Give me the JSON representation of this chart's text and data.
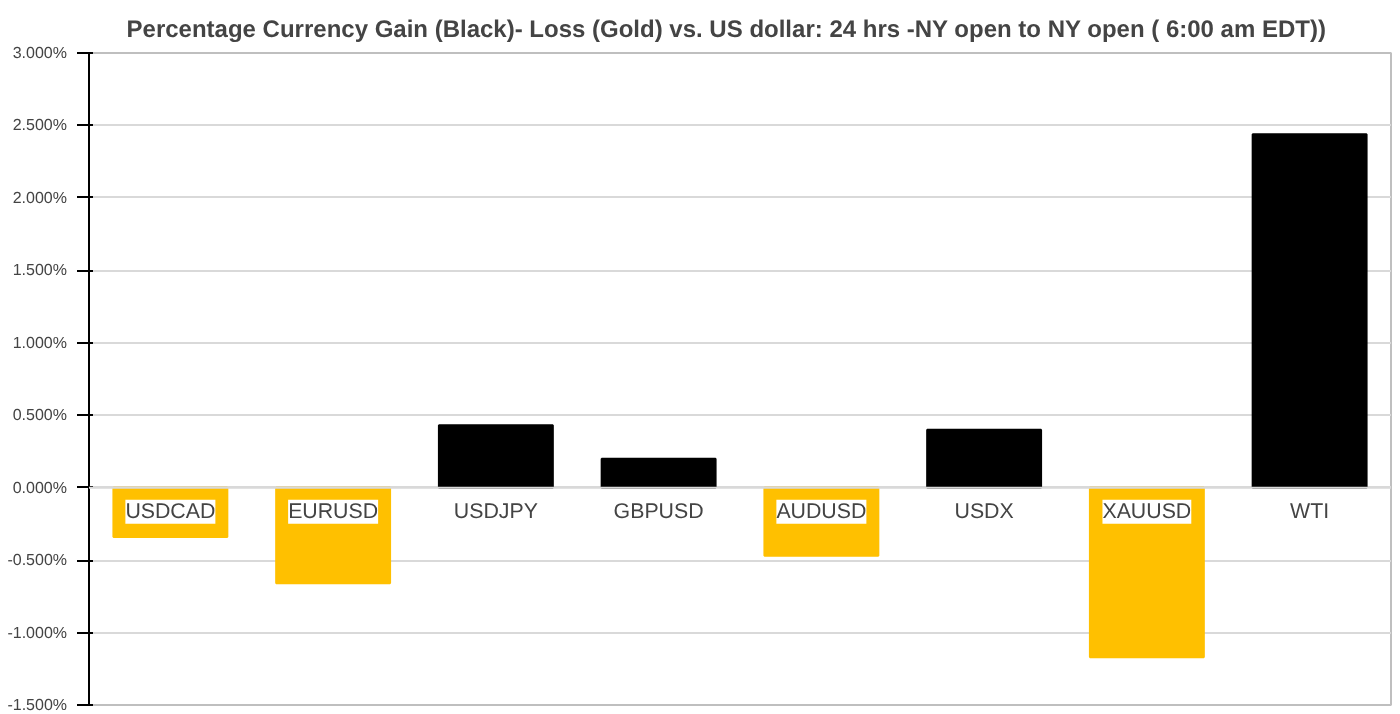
{
  "chart_data": {
    "type": "bar",
    "title": "Percentage Currency  Gain (Black)- Loss (Gold)  vs. US dollar:   24 hrs -NY open to NY open ( 6:00 am EDT))",
    "categories": [
      "USDCAD",
      "EURUSD",
      "USDJPY",
      "GBPUSD",
      "AUDUSD",
      "USDX",
      "XAUUSD",
      "WTI"
    ],
    "values": [
      -0.34,
      -0.66,
      0.43,
      0.2,
      -0.47,
      0.4,
      -1.17,
      2.44
    ],
    "colors": [
      "#ffc000",
      "#ffc000",
      "#000000",
      "#000000",
      "#ffc000",
      "#000000",
      "#ffc000",
      "#000000"
    ],
    "ylim": [
      -1.5,
      3.0
    ],
    "yticks": [
      {
        "value": -1.5,
        "label": "-1.500%"
      },
      {
        "value": -1.0,
        "label": "-1.000%"
      },
      {
        "value": -0.5,
        "label": "-0.500%"
      },
      {
        "value": 0.0,
        "label": "0.000%"
      },
      {
        "value": 0.5,
        "label": "0.500%"
      },
      {
        "value": 1.0,
        "label": "1.000%"
      },
      {
        "value": 1.5,
        "label": "1.500%"
      },
      {
        "value": 2.0,
        "label": "2.000%"
      },
      {
        "value": 2.5,
        "label": "2.500%"
      },
      {
        "value": 3.0,
        "label": "3.000%"
      }
    ],
    "grid": "y"
  }
}
